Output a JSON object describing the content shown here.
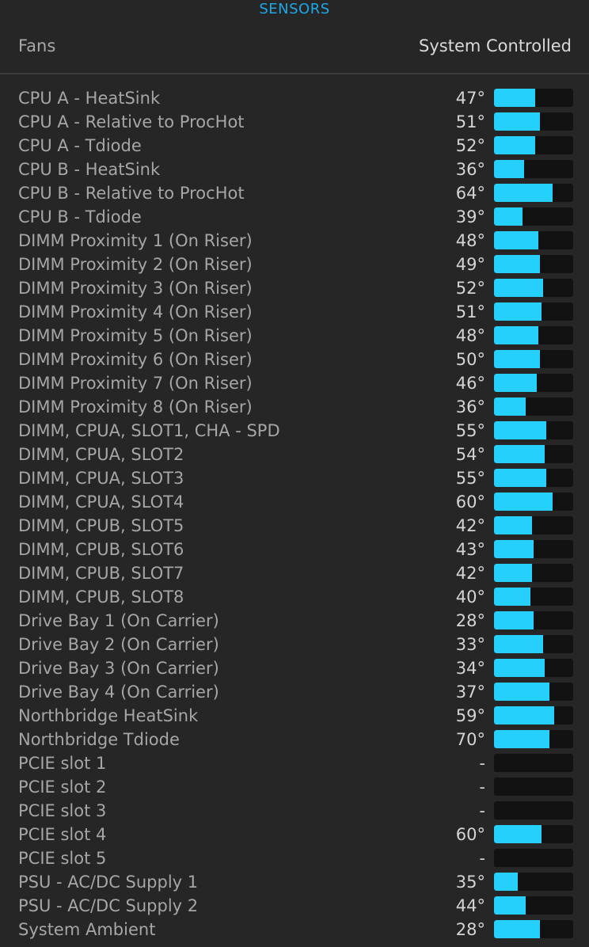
{
  "header": {
    "title": "SENSORS"
  },
  "fans": {
    "label": "Fans",
    "mode": "System Controlled"
  },
  "colors": {
    "accent": "#1ba8e8",
    "bar_fill": "#26d0fc",
    "bar_track": "#121212",
    "background": "#262626"
  },
  "sensors": [
    {
      "name": "CPU A - HeatSink",
      "value": "47°",
      "level": 52
    },
    {
      "name": "CPU A - Relative to ProcHot",
      "value": "51°",
      "level": 58
    },
    {
      "name": "CPU A - Tdiode",
      "value": "52°",
      "level": 52
    },
    {
      "name": "CPU B - HeatSink",
      "value": "36°",
      "level": 38
    },
    {
      "name": "CPU B - Relative to ProcHot",
      "value": "64°",
      "level": 74
    },
    {
      "name": "CPU B - Tdiode",
      "value": "39°",
      "level": 36
    },
    {
      "name": "DIMM Proximity 1 (On Riser)",
      "value": "48°",
      "level": 56
    },
    {
      "name": "DIMM Proximity 2 (On Riser)",
      "value": "49°",
      "level": 58
    },
    {
      "name": "DIMM Proximity 3 (On Riser)",
      "value": "52°",
      "level": 62
    },
    {
      "name": "DIMM Proximity 4 (On Riser)",
      "value": "51°",
      "level": 60
    },
    {
      "name": "DIMM Proximity 5 (On Riser)",
      "value": "48°",
      "level": 56
    },
    {
      "name": "DIMM Proximity 6 (On Riser)",
      "value": "50°",
      "level": 58
    },
    {
      "name": "DIMM Proximity 7 (On Riser)",
      "value": "46°",
      "level": 54
    },
    {
      "name": "DIMM Proximity 8 (On Riser)",
      "value": "36°",
      "level": 40
    },
    {
      "name": "DIMM, CPUA, SLOT1, CHA - SPD",
      "value": "55°",
      "level": 66
    },
    {
      "name": "DIMM, CPUA, SLOT2",
      "value": "54°",
      "level": 64
    },
    {
      "name": "DIMM, CPUA, SLOT3",
      "value": "55°",
      "level": 66
    },
    {
      "name": "DIMM, CPUA, SLOT4",
      "value": "60°",
      "level": 74
    },
    {
      "name": "DIMM, CPUB, SLOT5",
      "value": "42°",
      "level": 48
    },
    {
      "name": "DIMM, CPUB, SLOT6",
      "value": "43°",
      "level": 50
    },
    {
      "name": "DIMM, CPUB, SLOT7",
      "value": "42°",
      "level": 48
    },
    {
      "name": "DIMM, CPUB, SLOT8",
      "value": "40°",
      "level": 46
    },
    {
      "name": "Drive Bay 1 (On Carrier)",
      "value": "28°",
      "level": 50
    },
    {
      "name": "Drive Bay 2 (On Carrier)",
      "value": "33°",
      "level": 62
    },
    {
      "name": "Drive Bay 3 (On Carrier)",
      "value": "34°",
      "level": 64
    },
    {
      "name": "Drive Bay 4 (On Carrier)",
      "value": "37°",
      "level": 70
    },
    {
      "name": "Northbridge HeatSink",
      "value": "59°",
      "level": 76
    },
    {
      "name": "Northbridge Tdiode",
      "value": "70°",
      "level": 70
    },
    {
      "name": "PCIE slot 1",
      "value": "-",
      "level": 0
    },
    {
      "name": "PCIE slot 2",
      "value": "-",
      "level": 0
    },
    {
      "name": "PCIE slot 3",
      "value": "-",
      "level": 0
    },
    {
      "name": "PCIE slot 4",
      "value": "60°",
      "level": 60
    },
    {
      "name": "PCIE slot 5",
      "value": "-",
      "level": 0
    },
    {
      "name": "PSU - AC/DC Supply 1",
      "value": "35°",
      "level": 30
    },
    {
      "name": "PSU - AC/DC Supply 2",
      "value": "44°",
      "level": 40
    },
    {
      "name": "System Ambient",
      "value": "28°",
      "level": 58
    }
  ]
}
